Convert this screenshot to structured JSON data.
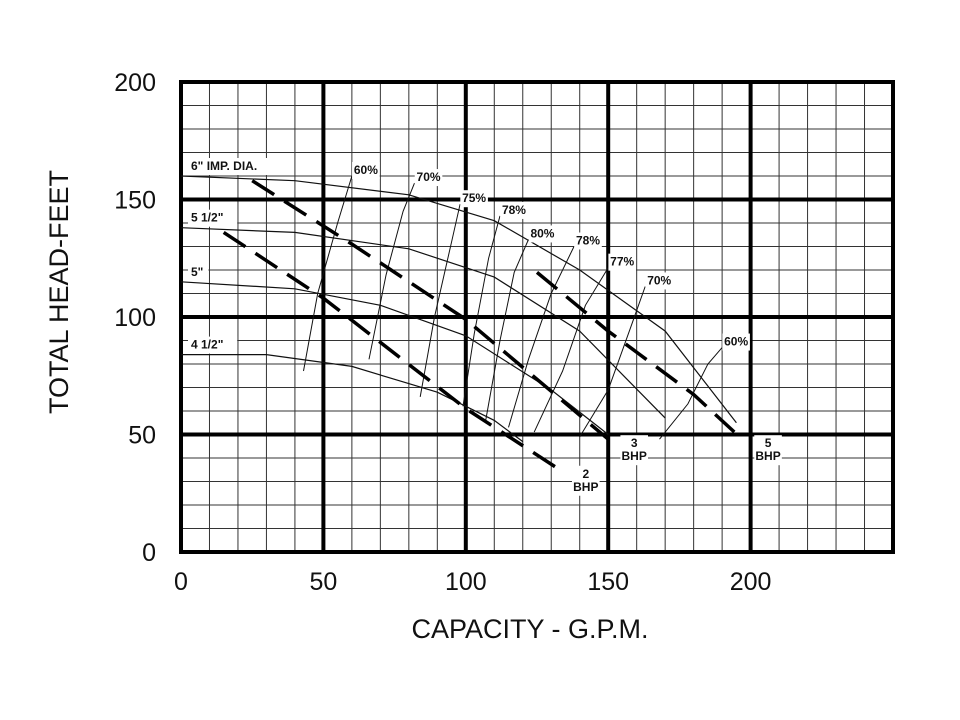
{
  "chart_data": {
    "type": "line",
    "xlabel": "CAPACITY - G.P.M.",
    "ylabel": "TOTAL HEAD-FEET",
    "xlim": [
      0,
      250
    ],
    "ylim": [
      0,
      200
    ],
    "x_ticks": [
      0,
      50,
      100,
      150,
      200
    ],
    "y_ticks": [
      0,
      50,
      100,
      150,
      200
    ],
    "x_tick_labels": [
      "0",
      "50",
      "100",
      "150",
      "200"
    ],
    "y_tick_labels": [
      "0",
      "50",
      "100",
      "150",
      "200"
    ],
    "grid": true,
    "impeller_curves": [
      {
        "label": "6\" IMP. DIA.",
        "x": [
          0,
          40,
          80,
          110,
          140,
          170,
          195
        ],
        "y": [
          160,
          158,
          152,
          141,
          120,
          94,
          55
        ]
      },
      {
        "label": "5 1/2\"",
        "x": [
          0,
          40,
          80,
          110,
          140,
          170
        ],
        "y": [
          138,
          136,
          129,
          117,
          94,
          57
        ]
      },
      {
        "label": "5\"",
        "x": [
          0,
          40,
          70,
          100,
          130,
          150
        ],
        "y": [
          115,
          112,
          105,
          92,
          69,
          50
        ]
      },
      {
        "label": "4 1/2\"",
        "x": [
          0,
          30,
          60,
          90,
          110,
          120
        ],
        "y": [
          84,
          84,
          79,
          68,
          56,
          47
        ]
      }
    ],
    "efficiency_curves": [
      {
        "label": "60%",
        "x": [
          43,
          48,
          55,
          60
        ],
        "y": [
          77,
          110,
          140,
          160
        ]
      },
      {
        "label": "70%",
        "x": [
          66,
          72,
          78,
          82
        ],
        "y": [
          82,
          118,
          145,
          157
        ]
      },
      {
        "label": "75%",
        "x": [
          84,
          89,
          95,
          98
        ],
        "y": [
          66,
          100,
          132,
          148
        ]
      },
      {
        "label": "78%",
        "x": [
          99,
          103,
          108,
          112
        ],
        "y": [
          62,
          93,
          125,
          143
        ]
      },
      {
        "label": "80%",
        "x": [
          107,
          112,
          117,
          122
        ],
        "y": [
          56,
          90,
          119,
          133
        ]
      },
      {
        "label": "78%",
        "x": [
          115,
          122,
          130,
          138
        ],
        "y": [
          53,
          82,
          110,
          130
        ]
      },
      {
        "label": "77%",
        "x": [
          124,
          134,
          142,
          150
        ],
        "y": [
          51,
          77,
          105,
          121
        ]
      },
      {
        "label": "70%",
        "x": [
          140,
          150,
          158,
          163
        ],
        "y": [
          49,
          69,
          96,
          113
        ]
      },
      {
        "label": "60%",
        "x": [
          168,
          178,
          185,
          190
        ],
        "y": [
          48,
          63,
          80,
          87
        ]
      }
    ],
    "bhp_lines": [
      {
        "label": "2",
        "unit": "BHP",
        "x": [
          15,
          50,
          100,
          133
        ],
        "y": [
          136,
          108,
          61,
          35
        ]
      },
      {
        "label": "3",
        "unit": "BHP",
        "x": [
          25,
          60,
          100,
          150
        ],
        "y": [
          158,
          131,
          99,
          48
        ]
      },
      {
        "label": "5",
        "unit": "BHP",
        "x": [
          125,
          150,
          180,
          197
        ],
        "y": [
          119,
          94,
          67,
          48
        ]
      }
    ]
  }
}
